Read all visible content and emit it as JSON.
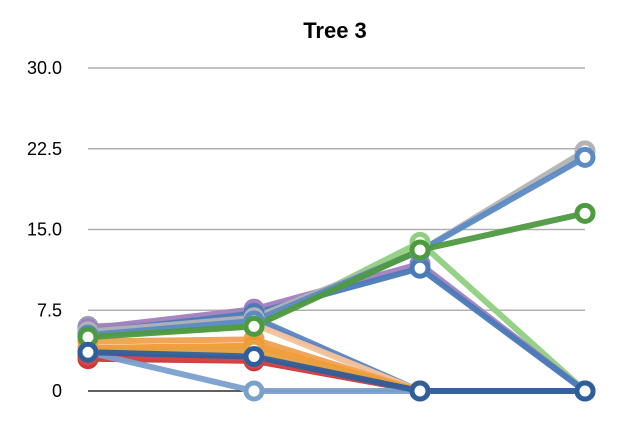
{
  "chart_data": {
    "type": "line",
    "title": "Tree 3",
    "xlabel": "",
    "ylabel": "",
    "ylim": [
      0,
      30
    ],
    "yticks": [
      0,
      7.5,
      15.0,
      22.5,
      30.0
    ],
    "ytick_labels": [
      "0",
      "7.5",
      "15.0",
      "22.5",
      "30.0"
    ],
    "x": [
      1,
      2,
      3,
      4
    ],
    "grid": true,
    "legend": "none",
    "series": [
      {
        "color": "#9aa3b6",
        "values": [
          6.0,
          6.5,
          0,
          0
        ]
      },
      {
        "color": "#5b85c4",
        "values": [
          5.6,
          6.8,
          0,
          0
        ]
      },
      {
        "color": "#f5c39a",
        "values": [
          5.2,
          6.2,
          0,
          0
        ]
      },
      {
        "color": "#f0a050",
        "values": [
          4.6,
          4.8,
          0,
          0
        ]
      },
      {
        "color": "#f29a30",
        "values": [
          4.0,
          4.2,
          0,
          0
        ]
      },
      {
        "color": "#e8a040",
        "values": [
          3.8,
          3.8,
          0,
          0
        ]
      },
      {
        "color": "#c83a3a",
        "values": [
          3.0,
          2.8,
          0,
          0
        ]
      },
      {
        "color": "#d94545",
        "values": [
          3.3,
          3.0,
          0,
          0
        ]
      },
      {
        "color": "#7aa0cc",
        "values": [
          3.6,
          0,
          0,
          0
        ]
      },
      {
        "color": "#8fcf7f",
        "values": [
          5.2,
          6.0,
          13.8,
          0
        ]
      },
      {
        "color": "#a080bf",
        "values": [
          5.8,
          7.6,
          11.8,
          0
        ]
      },
      {
        "color": "#4a7ab8",
        "values": [
          5.4,
          7.2,
          11.4,
          0
        ]
      },
      {
        "color": "#b3b3b3",
        "values": [
          5.5,
          6.8,
          13.0,
          22.3
        ]
      },
      {
        "color": "#5b8ac4",
        "values": [
          5.2,
          6.5,
          13.0,
          21.7
        ]
      },
      {
        "color": "#4e9a40",
        "values": [
          5.0,
          6.0,
          13.1,
          16.5
        ]
      },
      {
        "color": "#2f5f9a",
        "values": [
          3.6,
          3.2,
          0,
          0
        ]
      }
    ]
  }
}
